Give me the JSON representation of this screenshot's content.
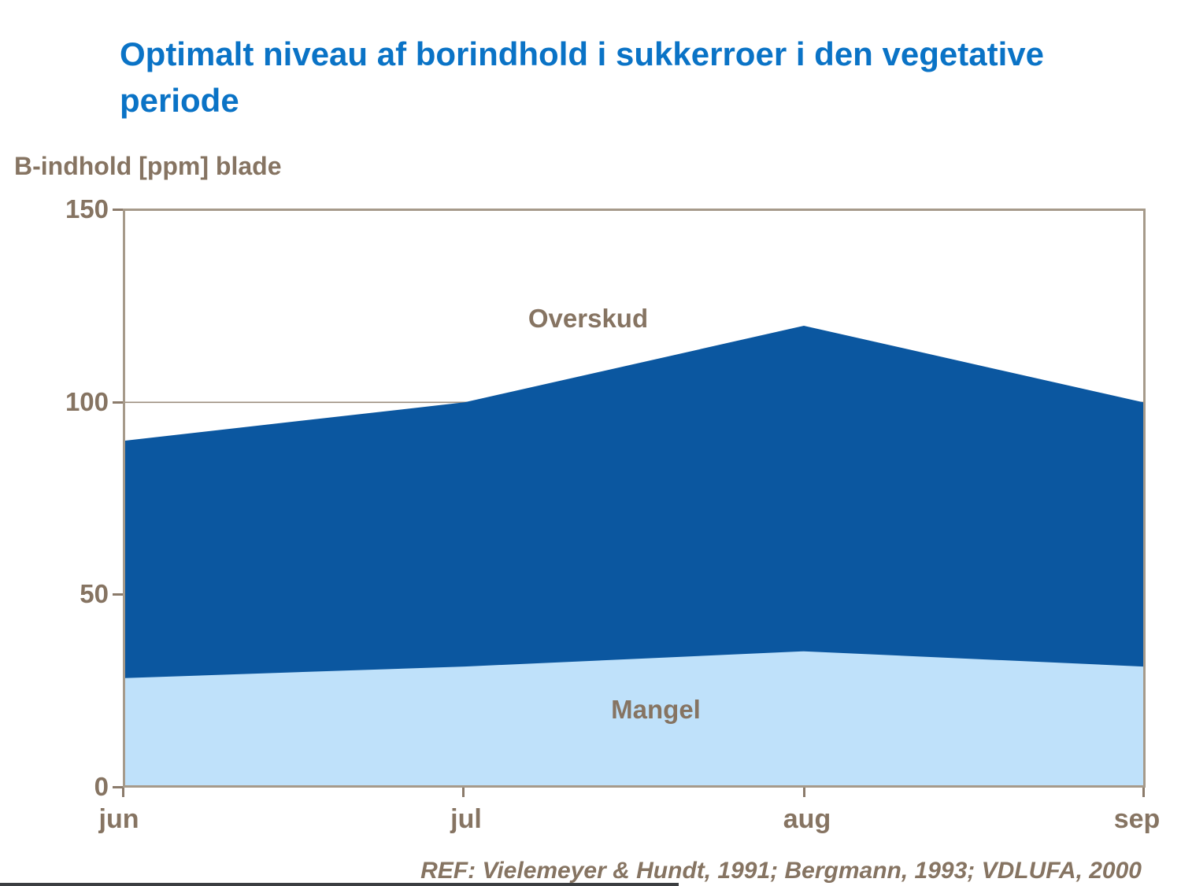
{
  "page": {
    "title": "Optimalt niveau af borindhold i sukkerroer i den vegetative periode",
    "ref": "REF: Vielemeyer & Hundt, 1991; Bergmann, 1993; VDLUFA, 2000"
  },
  "colors": {
    "title_blue": "#0a73c6",
    "area_dark": "#0b57a0",
    "area_light": "#bfe1fa",
    "axis_text": "#867462",
    "frame": "#a69a8a",
    "gridline": "#9c8e7e",
    "tick": "#8b7b6b",
    "footer_line": "#3b3e41"
  },
  "chart_data": {
    "type": "area",
    "ylabel": "B-indhold [ppm] blade",
    "x": [
      "jun",
      "jul",
      "aug",
      "sep"
    ],
    "series": [
      {
        "name": "mangel_upper_boundary",
        "zone_below": "Mangel",
        "values": [
          28,
          31,
          35,
          31
        ]
      },
      {
        "name": "optimal_upper_boundary",
        "zone_above": "Overskud",
        "values": [
          90,
          100,
          120,
          100
        ]
      }
    ],
    "zone_labels": {
      "upper": "Overskud",
      "lower": "Mangel"
    },
    "yticks": [
      150,
      100,
      50,
      0
    ],
    "ylim": [
      0,
      150
    ],
    "gridlines": [
      100
    ],
    "legend": "none",
    "grid": "horizontal-at-100-only"
  }
}
